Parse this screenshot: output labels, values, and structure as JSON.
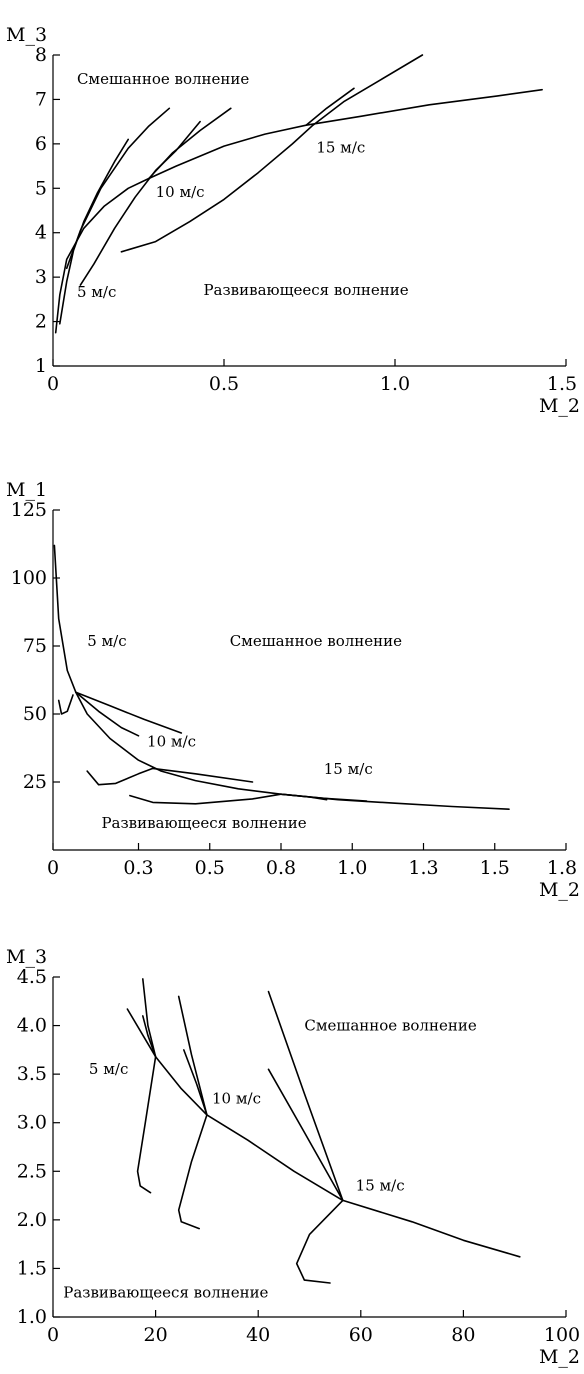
{
  "chart_data": [
    {
      "type": "line",
      "xlabel": "M_2",
      "ylabel": "M_3",
      "xlim": [
        0,
        1.5
      ],
      "ylim": [
        1,
        8
      ],
      "xticks": [
        {
          "v": 0,
          "label": "0"
        },
        {
          "v": 0.5,
          "label": "0.5"
        },
        {
          "v": 1.0,
          "label": "1.0"
        },
        {
          "v": 1.5,
          "label": "1.5"
        }
      ],
      "yticks": [
        {
          "v": 1,
          "label": "1"
        },
        {
          "v": 2,
          "label": "2"
        },
        {
          "v": 3,
          "label": "3"
        },
        {
          "v": 4,
          "label": "4"
        },
        {
          "v": 5,
          "label": "5"
        },
        {
          "v": 6,
          "label": "6"
        },
        {
          "v": 7,
          "label": "7"
        },
        {
          "v": 8,
          "label": "8"
        }
      ],
      "annotations": [
        {
          "text": "Смешанное волнение",
          "x": 0.07,
          "y": 7.35
        },
        {
          "text": "Развивающееся волнение",
          "x": 0.44,
          "y": 2.6
        },
        {
          "text": "5 м/с",
          "x": 0.07,
          "y": 2.55
        },
        {
          "text": "10 м/с",
          "x": 0.3,
          "y": 4.8
        },
        {
          "text": "15 м/с",
          "x": 0.77,
          "y": 5.8
        }
      ],
      "series": [
        {
          "points": [
            [
              0.008,
              1.75
            ],
            [
              0.02,
              2.6
            ],
            [
              0.04,
              3.4
            ],
            [
              0.09,
              4.1
            ],
            [
              0.15,
              4.6
            ],
            [
              0.22,
              5.0
            ],
            [
              0.28,
              5.22
            ],
            [
              0.36,
              5.5
            ],
            [
              0.5,
              5.95
            ],
            [
              0.62,
              6.22
            ],
            [
              0.74,
              6.42
            ],
            [
              0.9,
              6.62
            ],
            [
              1.1,
              6.88
            ],
            [
              1.3,
              7.08
            ],
            [
              1.43,
              7.22
            ]
          ]
        },
        {
          "points": [
            [
              0.02,
              1.95
            ],
            [
              0.04,
              2.9
            ],
            [
              0.06,
              3.6
            ],
            [
              0.09,
              4.25
            ],
            [
              0.13,
              4.9
            ],
            [
              0.18,
              5.6
            ],
            [
              0.22,
              6.1
            ]
          ]
        },
        {
          "points": [
            [
              0.04,
              3.2
            ],
            [
              0.08,
              4.05
            ],
            [
              0.14,
              5.0
            ],
            [
              0.22,
              5.9
            ],
            [
              0.28,
              6.4
            ],
            [
              0.34,
              6.8
            ]
          ]
        },
        {
          "points": [
            [
              0.08,
              2.82
            ],
            [
              0.12,
              3.3
            ],
            [
              0.18,
              4.1
            ],
            [
              0.24,
              4.8
            ],
            [
              0.3,
              5.4
            ],
            [
              0.36,
              5.85
            ],
            [
              0.43,
              6.5
            ]
          ]
        },
        {
          "points": [
            [
              0.28,
              5.22
            ],
            [
              0.35,
              5.8
            ],
            [
              0.43,
              6.3
            ],
            [
              0.52,
              6.8
            ]
          ]
        },
        {
          "points": [
            [
              0.2,
              3.57
            ],
            [
              0.3,
              3.8
            ],
            [
              0.4,
              4.25
            ],
            [
              0.5,
              4.75
            ],
            [
              0.6,
              5.35
            ],
            [
              0.7,
              6.0
            ],
            [
              0.76,
              6.42
            ],
            [
              0.85,
              6.95
            ],
            [
              0.96,
              7.45
            ],
            [
              1.08,
              8.0
            ]
          ]
        },
        {
          "points": [
            [
              0.74,
              6.42
            ],
            [
              0.8,
              6.8
            ],
            [
              0.88,
              7.25
            ]
          ]
        }
      ]
    },
    {
      "type": "line",
      "xlabel": "M_2",
      "ylabel": "M_1",
      "xlim": [
        0,
        1.8
      ],
      "ylim": [
        0,
        125
      ],
      "xticks": [
        {
          "v": 0,
          "label": "0"
        },
        {
          "v": 0.3,
          "label": "0.3"
        },
        {
          "v": 0.55,
          "label": "0.5"
        },
        {
          "v": 0.8,
          "label": "0.8"
        },
        {
          "v": 1.05,
          "label": "1.0"
        },
        {
          "v": 1.3,
          "label": "1.3"
        },
        {
          "v": 1.55,
          "label": "1.5"
        },
        {
          "v": 1.8,
          "label": "1.8"
        }
      ],
      "yticks": [
        {
          "v": 25,
          "label": "25"
        },
        {
          "v": 50,
          "label": "50"
        },
        {
          "v": 75,
          "label": "75"
        },
        {
          "v": 100,
          "label": "100"
        },
        {
          "v": 125,
          "label": "125"
        }
      ],
      "annotations": [
        {
          "text": "5 м/с",
          "x": 0.12,
          "y": 75
        },
        {
          "text": "Смешанное волнение",
          "x": 0.62,
          "y": 75
        },
        {
          "text": "10 м/с",
          "x": 0.33,
          "y": 38
        },
        {
          "text": "15 м/с",
          "x": 0.95,
          "y": 28
        },
        {
          "text": "Развивающееся волнение",
          "x": 0.17,
          "y": 8
        }
      ],
      "series": [
        {
          "points": [
            [
              0.005,
              112
            ],
            [
              0.02,
              85
            ],
            [
              0.05,
              66
            ],
            [
              0.08,
              58
            ],
            [
              0.12,
              50
            ],
            [
              0.2,
              41
            ],
            [
              0.3,
              33
            ],
            [
              0.38,
              29
            ],
            [
              0.5,
              25.5
            ],
            [
              0.65,
              22.5
            ],
            [
              0.8,
              20.5
            ],
            [
              1.0,
              18.5
            ],
            [
              1.2,
              17.2
            ],
            [
              1.4,
              16
            ],
            [
              1.6,
              15
            ]
          ]
        },
        {
          "points": [
            [
              0.02,
              55
            ],
            [
              0.03,
              50
            ],
            [
              0.05,
              51
            ],
            [
              0.07,
              57
            ]
          ]
        },
        {
          "points": [
            [
              0.08,
              58
            ],
            [
              0.2,
              53
            ],
            [
              0.32,
              48
            ],
            [
              0.45,
              43
            ]
          ]
        },
        {
          "points": [
            [
              0.08,
              58
            ],
            [
              0.16,
              51
            ],
            [
              0.24,
              45
            ],
            [
              0.3,
              42
            ]
          ]
        },
        {
          "points": [
            [
              0.12,
              29
            ],
            [
              0.16,
              24
            ],
            [
              0.22,
              24.5
            ],
            [
              0.3,
              28
            ],
            [
              0.35,
              30
            ]
          ]
        },
        {
          "points": [
            [
              0.35,
              30
            ],
            [
              0.5,
              28
            ],
            [
              0.7,
              25
            ]
          ]
        },
        {
          "points": [
            [
              0.27,
              20
            ],
            [
              0.35,
              17.5
            ],
            [
              0.5,
              17
            ],
            [
              0.7,
              18.8
            ],
            [
              0.8,
              20.5
            ]
          ]
        },
        {
          "points": [
            [
              0.8,
              20.5
            ],
            [
              0.95,
              19
            ],
            [
              1.1,
              18
            ]
          ]
        },
        {
          "points": [
            [
              0.8,
              20.5
            ],
            [
              0.9,
              19.5
            ],
            [
              0.96,
              18.5
            ]
          ]
        }
      ]
    },
    {
      "type": "line",
      "xlabel": "M_2",
      "ylabel": "M_3",
      "xlim": [
        0,
        100
      ],
      "ylim": [
        1.0,
        4.5
      ],
      "xticks": [
        {
          "v": 0,
          "label": "0"
        },
        {
          "v": 20,
          "label": "20"
        },
        {
          "v": 40,
          "label": "40"
        },
        {
          "v": 60,
          "label": "60"
        },
        {
          "v": 80,
          "label": "80"
        },
        {
          "v": 100,
          "label": "100"
        }
      ],
      "yticks": [
        {
          "v": 1.0,
          "label": "1.0"
        },
        {
          "v": 1.5,
          "label": "1.5"
        },
        {
          "v": 2.0,
          "label": "2.0"
        },
        {
          "v": 2.5,
          "label": "2.5"
        },
        {
          "v": 3.0,
          "label": "3.0"
        },
        {
          "v": 3.5,
          "label": "3.5"
        },
        {
          "v": 4.0,
          "label": "4.0"
        },
        {
          "v": 4.5,
          "label": "4.5"
        }
      ],
      "annotations": [
        {
          "text": "Смешанное волнение",
          "x": 49,
          "y": 3.95
        },
        {
          "text": "5 м/с",
          "x": 7,
          "y": 3.5
        },
        {
          "text": "10 м/с",
          "x": 31,
          "y": 3.2
        },
        {
          "text": "15 м/с",
          "x": 59,
          "y": 2.3
        },
        {
          "text": "Развивающееся волнение",
          "x": 2,
          "y": 1.2
        }
      ],
      "series": [
        {
          "points": [
            [
              14.5,
              4.17
            ],
            [
              20,
              3.68
            ],
            [
              25,
              3.35
            ],
            [
              30,
              3.08
            ],
            [
              38,
              2.82
            ],
            [
              47,
              2.5
            ],
            [
              56.5,
              2.2
            ],
            [
              70,
              1.98
            ],
            [
              80,
              1.79
            ],
            [
              91,
              1.62
            ]
          ]
        },
        {
          "points": [
            [
              17.5,
              4.48
            ],
            [
              18.5,
              4.0
            ],
            [
              20,
              3.68
            ]
          ]
        },
        {
          "points": [
            [
              17.5,
              4.1
            ],
            [
              18.5,
              3.9
            ],
            [
              20,
              3.68
            ]
          ]
        },
        {
          "points": [
            [
              20,
              3.68
            ],
            [
              18,
              3.0
            ],
            [
              16.5,
              2.5
            ],
            [
              17,
              2.35
            ],
            [
              19,
              2.28
            ]
          ]
        },
        {
          "points": [
            [
              24.5,
              4.3
            ],
            [
              27,
              3.7
            ],
            [
              30,
              3.08
            ]
          ]
        },
        {
          "points": [
            [
              25.5,
              3.75
            ],
            [
              28,
              3.4
            ],
            [
              30,
              3.08
            ]
          ]
        },
        {
          "points": [
            [
              30,
              3.08
            ],
            [
              27,
              2.6
            ],
            [
              24.5,
              2.1
            ],
            [
              25,
              1.98
            ],
            [
              28.5,
              1.91
            ]
          ]
        },
        {
          "points": [
            [
              42,
              4.35
            ],
            [
              49,
              3.3
            ],
            [
              56.5,
              2.2
            ]
          ]
        },
        {
          "points": [
            [
              42,
              3.55
            ],
            [
              49,
              2.9
            ],
            [
              56.5,
              2.2
            ]
          ]
        },
        {
          "points": [
            [
              56.5,
              2.2
            ],
            [
              50,
              1.85
            ],
            [
              47.5,
              1.55
            ],
            [
              49,
              1.38
            ],
            [
              54,
              1.35
            ]
          ]
        }
      ]
    }
  ]
}
